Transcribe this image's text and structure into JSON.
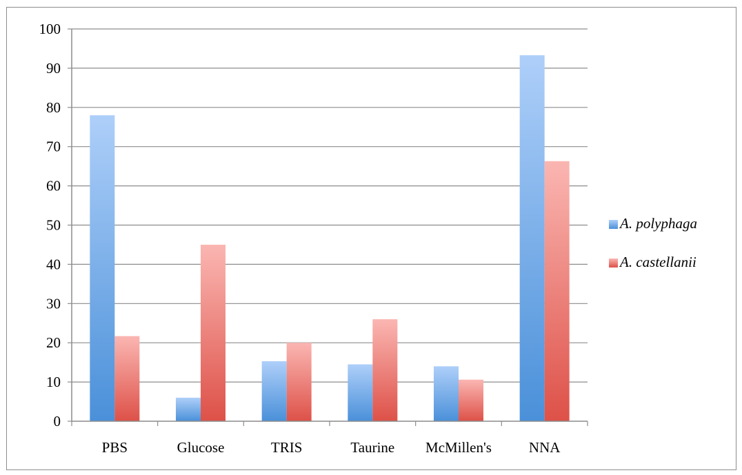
{
  "chart_data": {
    "type": "bar",
    "title": "",
    "xlabel": "",
    "ylabel": "",
    "categories": [
      "PBS",
      "Glucose",
      "TRIS",
      "Taurine",
      "McMillen's",
      "NNA"
    ],
    "series": [
      {
        "name": "A. polyphaga",
        "values": [
          78,
          6,
          15.3,
          14.5,
          14,
          93.3
        ],
        "color_top": "#aecff9",
        "color_bottom": "#4a90d9"
      },
      {
        "name": "A. castellanii",
        "values": [
          21.7,
          45,
          20,
          26,
          10.6,
          66.3
        ],
        "color_top": "#fbb6b2",
        "color_bottom": "#dd5148"
      }
    ],
    "ylim": [
      0,
      100
    ],
    "yticks": [
      0,
      10,
      20,
      30,
      40,
      50,
      60,
      70,
      80,
      90,
      100
    ],
    "grid": true,
    "legend_position": "right"
  }
}
